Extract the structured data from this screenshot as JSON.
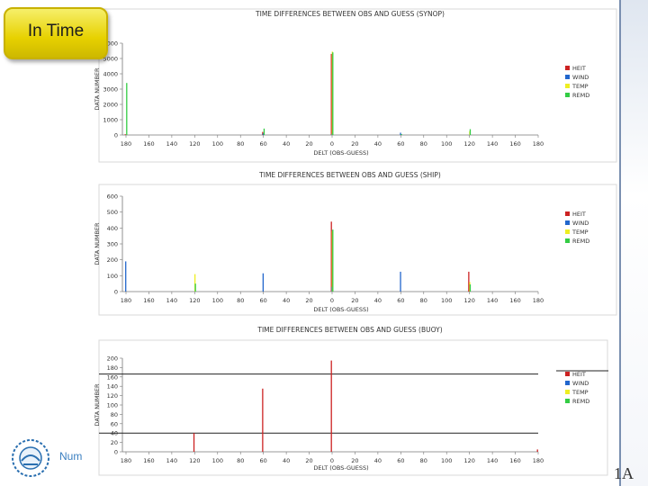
{
  "page": {
    "badge_label": "In Time",
    "footer_link": "Num",
    "corner_text": "1A"
  },
  "colors": {
    "HEIT": "#cc2222",
    "WIND": "#2266cc",
    "TEMP": "#eeee22",
    "REMD": "#33cc44"
  },
  "chart_data": [
    {
      "type": "bar",
      "title": "TIME DIFFERENCES BETWEEN OBS AND GUESS (SYNOP)",
      "xlabel": "DELT (OBS-GUESS)",
      "ylabel": "DATA NUMBER",
      "ylim": [
        0,
        6000
      ],
      "yticks": [
        0,
        1000,
        2000,
        3000,
        4000,
        5000,
        6000
      ],
      "xlim": [
        -180,
        180
      ],
      "xticks": [
        -180,
        -160,
        -140,
        -120,
        -100,
        -80,
        -60,
        -40,
        -20,
        0,
        20,
        40,
        60,
        80,
        100,
        120,
        140,
        160,
        180
      ],
      "xtick_labels": [
        "180",
        "160",
        "140",
        "120",
        "100",
        "80",
        "60",
        "40",
        "20",
        "0",
        "20",
        "40",
        "60",
        "80",
        "100",
        "120",
        "140",
        "160",
        "180"
      ],
      "legend": [
        "HEIT",
        "WIND",
        "TEMP",
        "REMD"
      ],
      "legend_position": "right",
      "grid": false,
      "series": [
        {
          "name": "HEIT",
          "points": [
            [
              -180,
              50
            ],
            [
              0,
              5300
            ],
            [
              -60,
              200
            ]
          ]
        },
        {
          "name": "WIND",
          "points": [
            [
              -60,
              100
            ],
            [
              60,
              150
            ],
            [
              0,
              80
            ]
          ]
        },
        {
          "name": "TEMP",
          "points": [
            [
              0,
              5450
            ],
            [
              120,
              250
            ]
          ]
        },
        {
          "name": "REMD",
          "points": [
            [
              -180,
              3400
            ],
            [
              -60,
              420
            ],
            [
              0,
              5400
            ],
            [
              120,
              380
            ],
            [
              60,
              60
            ]
          ]
        }
      ],
      "hlines": []
    },
    {
      "type": "bar",
      "title": "TIME DIFFERENCES BETWEEN OBS AND GUESS (SHIP)",
      "xlabel": "DELT (OBS-GUESS)",
      "ylabel": "DATA NUMBER",
      "ylim": [
        0,
        600
      ],
      "yticks": [
        0,
        100,
        200,
        300,
        400,
        500,
        600
      ],
      "xlim": [
        -180,
        180
      ],
      "xticks": [
        -180,
        -160,
        -140,
        -120,
        -100,
        -80,
        -60,
        -40,
        -20,
        0,
        20,
        40,
        60,
        80,
        100,
        120,
        140,
        160,
        180
      ],
      "xtick_labels": [
        "180",
        "160",
        "140",
        "120",
        "100",
        "80",
        "60",
        "40",
        "20",
        "0",
        "20",
        "40",
        "60",
        "80",
        "100",
        "120",
        "140",
        "160",
        "180"
      ],
      "legend": [
        "HEIT",
        "WIND",
        "TEMP",
        "REMD"
      ],
      "legend_position": "right",
      "grid": false,
      "series": [
        {
          "name": "HEIT",
          "points": [
            [
              0,
              440
            ],
            [
              120,
              125
            ]
          ]
        },
        {
          "name": "WIND",
          "points": [
            [
              -180,
              190
            ],
            [
              -60,
              115
            ],
            [
              60,
              125
            ],
            [
              0,
              30
            ]
          ]
        },
        {
          "name": "TEMP",
          "points": [
            [
              -120,
              110
            ],
            [
              0,
              380
            ],
            [
              120,
              60
            ]
          ]
        },
        {
          "name": "REMD",
          "points": [
            [
              -120,
              50
            ],
            [
              0,
              390
            ],
            [
              120,
              45
            ]
          ]
        }
      ],
      "hlines": []
    },
    {
      "type": "bar",
      "title": "TIME DIFFERENCES BETWEEN OBS AND GUESS (BUOY)",
      "xlabel": "DELT (OBS-GUESS)",
      "ylabel": "DATA NUMBER",
      "ylim": [
        0,
        200
      ],
      "yticks": [
        0,
        20,
        40,
        60,
        80,
        100,
        120,
        140,
        160,
        180,
        200
      ],
      "xlim": [
        -180,
        180
      ],
      "xticks": [
        -180,
        -160,
        -140,
        -120,
        -100,
        -80,
        -60,
        -40,
        -20,
        0,
        20,
        40,
        60,
        80,
        100,
        120,
        140,
        160,
        180
      ],
      "xtick_labels": [
        "180",
        "160",
        "140",
        "120",
        "100",
        "80",
        "60",
        "40",
        "20",
        "0",
        "20",
        "40",
        "60",
        "80",
        "100",
        "120",
        "140",
        "160",
        "180"
      ],
      "legend": [
        "HEIT",
        "WIND",
        "TEMP",
        "REMD"
      ],
      "legend_position": "right",
      "grid": false,
      "series": [
        {
          "name": "HEIT",
          "points": [
            [
              -120,
              40
            ],
            [
              -60,
              135
            ],
            [
              0,
              195
            ],
            [
              180,
              5
            ]
          ]
        },
        {
          "name": "WIND",
          "points": []
        },
        {
          "name": "TEMP",
          "points": []
        },
        {
          "name": "REMD",
          "points": []
        }
      ],
      "hlines": [
        166,
        40
      ]
    }
  ]
}
